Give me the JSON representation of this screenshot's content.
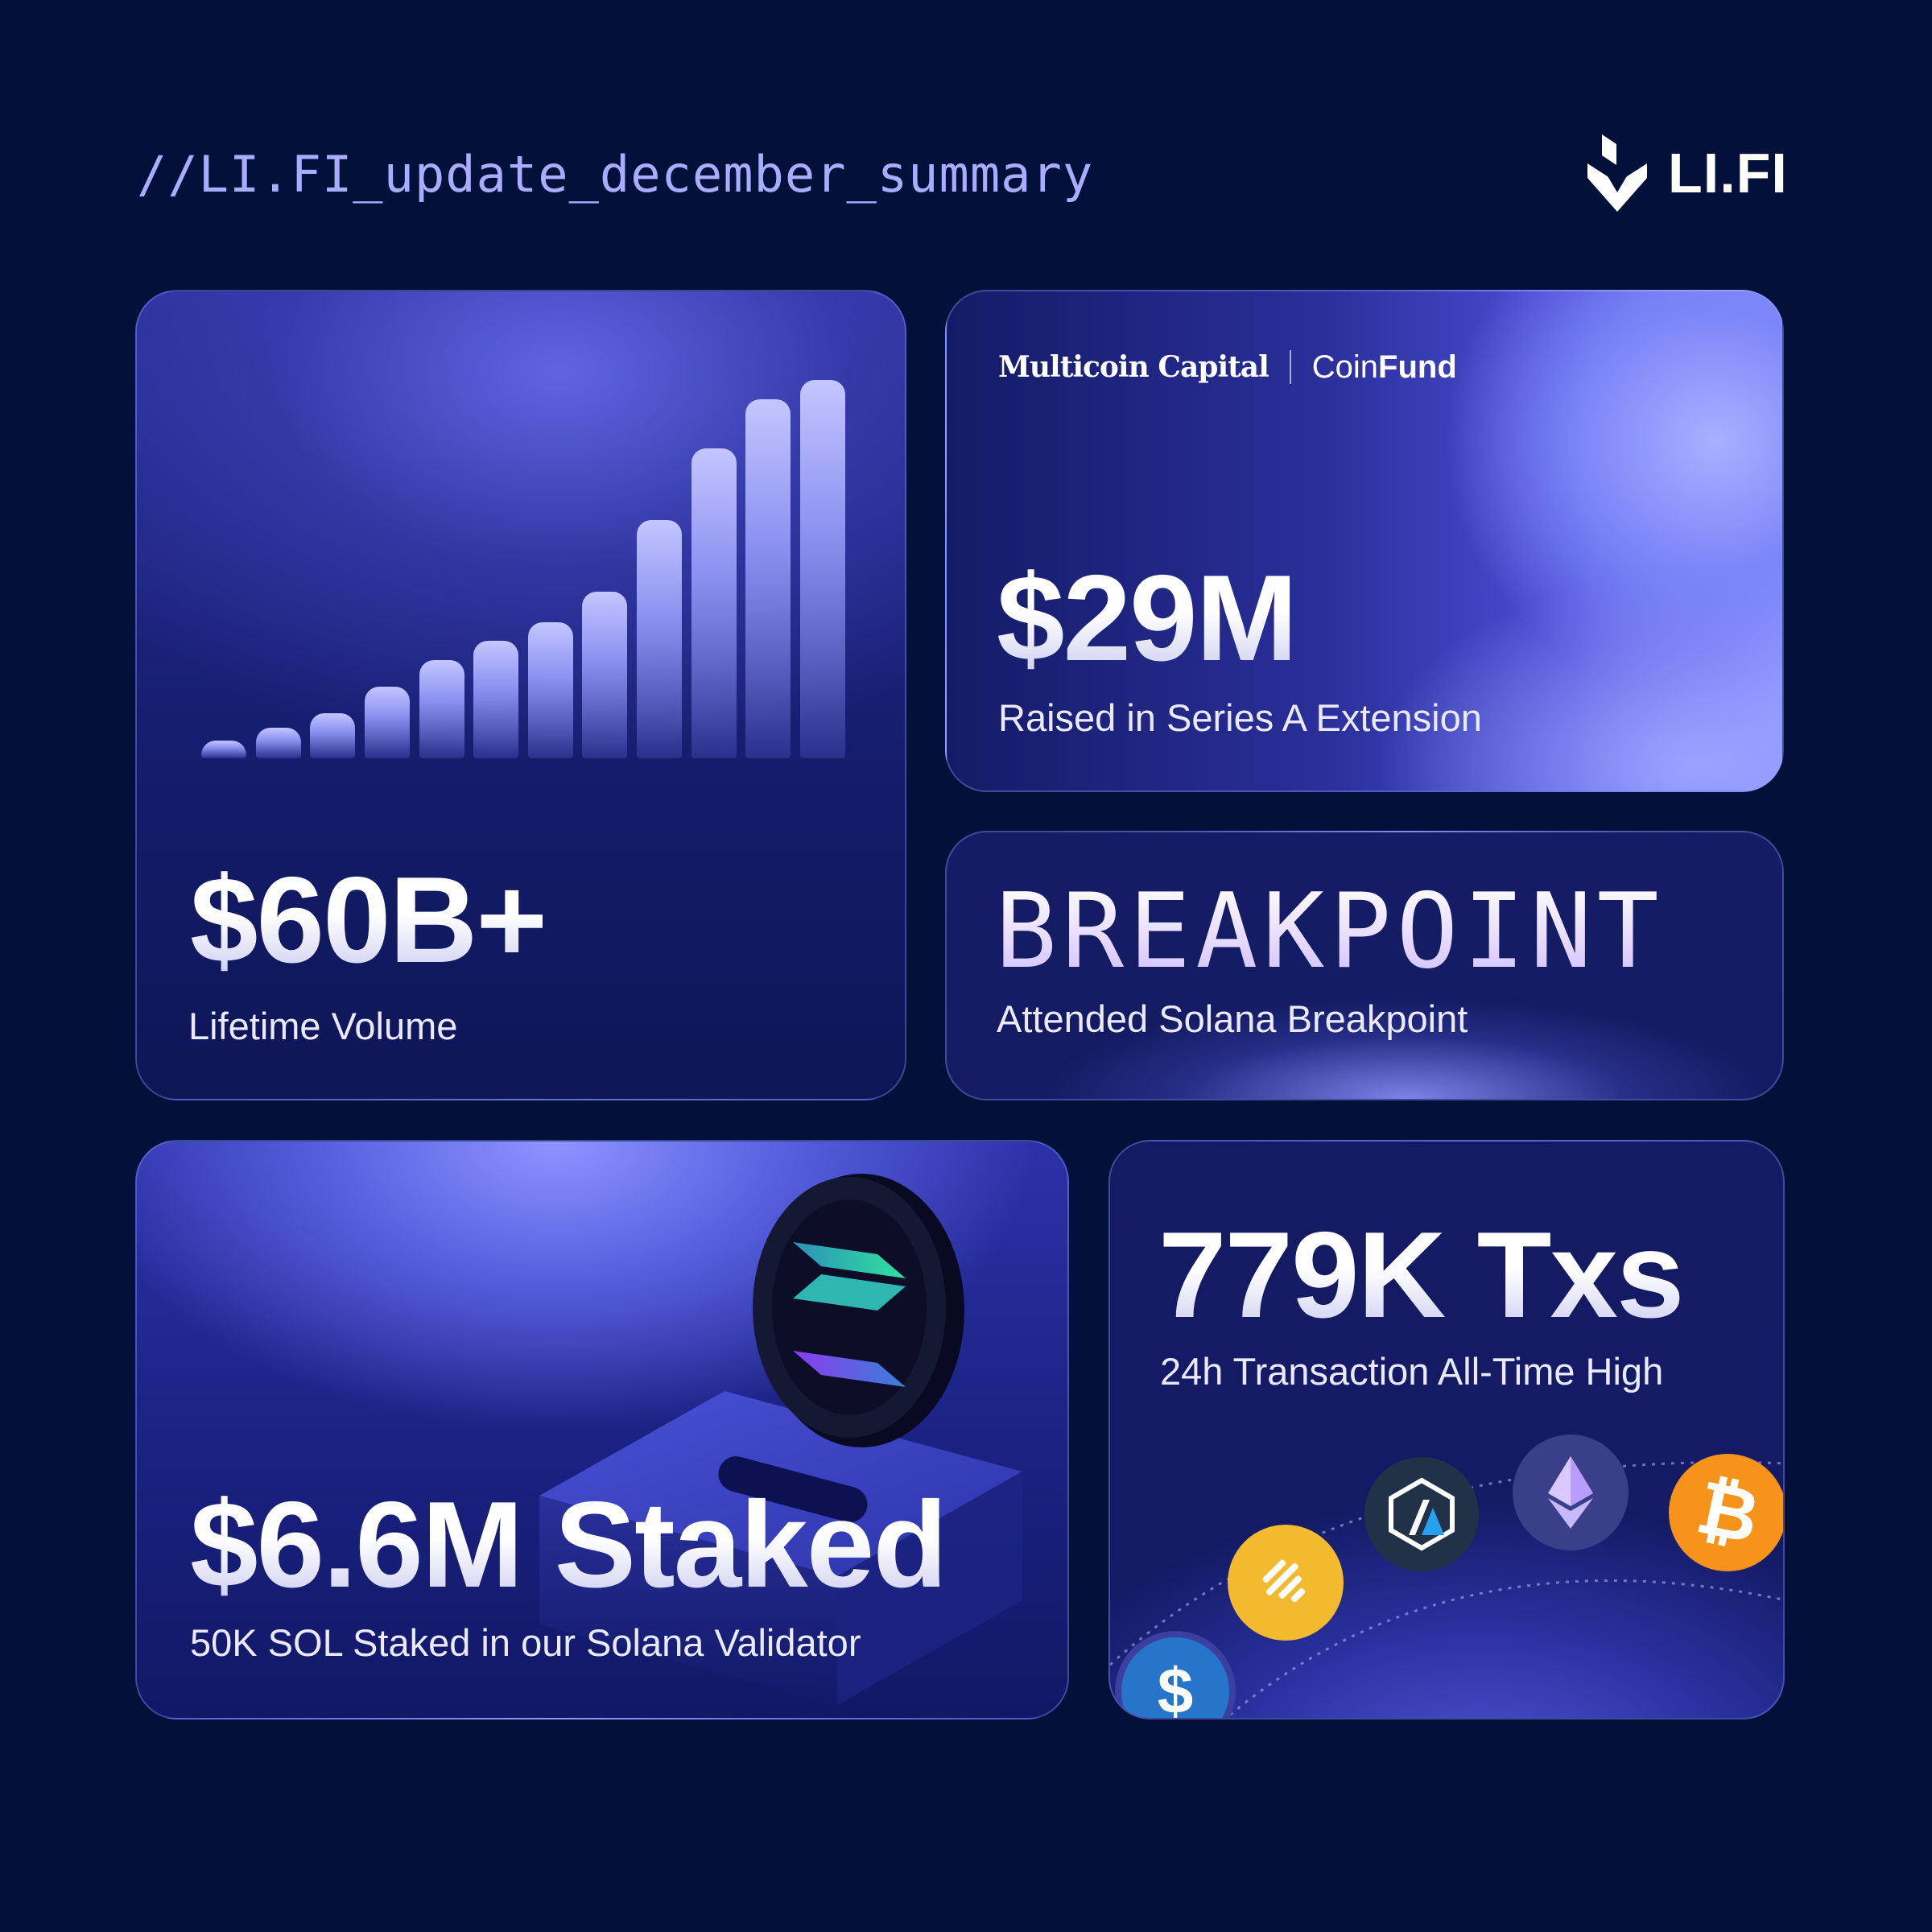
{
  "header": {
    "title": "//LI.FI_update_december_summary",
    "brand_name": "LI.FI",
    "brand_icon": "lifi-logo-icon"
  },
  "cards": {
    "volume": {
      "value": "$60B+",
      "label": "Lifetime Volume",
      "bar_levels": [
        0.03,
        0.08,
        0.12,
        0.19,
        0.26,
        0.31,
        0.36,
        0.44,
        0.63,
        0.82,
        0.95,
        1.0
      ]
    },
    "raise": {
      "funder_1": "Multicoin Capital",
      "funder_2_prefix": "Coin",
      "funder_2_suffix": "Fund",
      "value": "$29M",
      "label": "Raised in Series A Extension"
    },
    "breakpoint": {
      "word": "BREAKPOINT",
      "label": "Attended Solana Breakpoint"
    },
    "staked": {
      "value": "$6.6M Staked",
      "label": "50K SOL Staked in our Solana Validator",
      "icon": "solana-coin-icon"
    },
    "txs": {
      "value": "779K Txs",
      "label": "24h Transaction All-Time High",
      "tokens": [
        {
          "name": "usdc-icon",
          "color": "#2775ca"
        },
        {
          "name": "bnb-icon",
          "color": "#f3ba2f"
        },
        {
          "name": "arbitrum-icon",
          "color": "#213147"
        },
        {
          "name": "ethereum-icon",
          "color": "#3a3f8a"
        },
        {
          "name": "bitcoin-icon",
          "color": "#f7931a"
        }
      ]
    }
  },
  "colors": {
    "background": "#03103a",
    "accent": "#a9acff"
  }
}
